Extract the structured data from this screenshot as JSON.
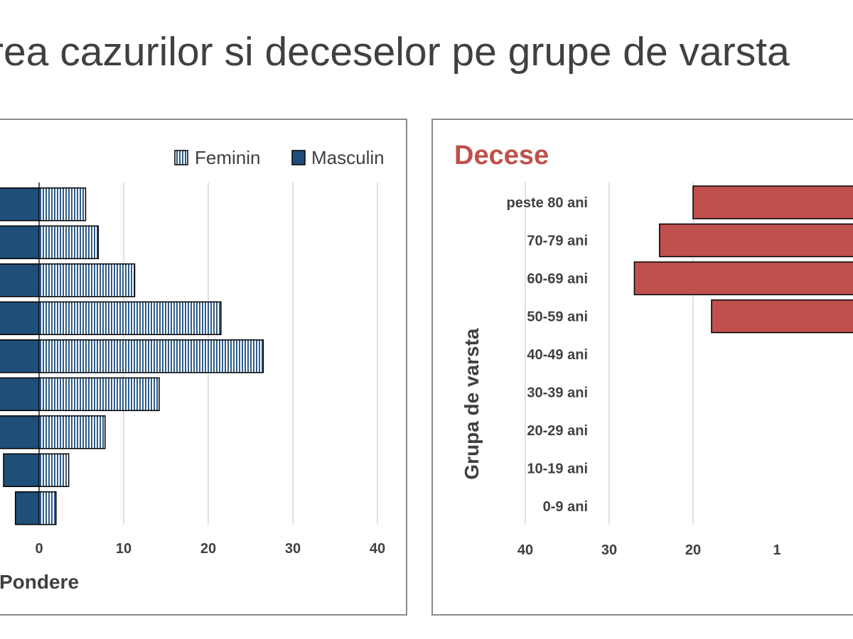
{
  "page": {
    "title": "rea cazurilor si deceselor pe grupe de varsta"
  },
  "colors": {
    "masculin": "#1f4e79",
    "feminin_stripe": "#2e5c8a",
    "deaths": "#c0504d",
    "deaths_title": "#c0504d",
    "text": "#404040"
  },
  "chart_data": [
    {
      "type": "bar",
      "orientation": "horizontal",
      "title": "",
      "xlabel": "Pondere",
      "ylabel": "",
      "categories": [
        "peste 80 ani",
        "70-79 ani",
        "60-69 ani",
        "50-59 ani",
        "40-49 ani",
        "30-39 ani",
        "20-29 ani",
        "10-19 ani",
        "0-9 ani"
      ],
      "series": [
        {
          "name": "Feminin",
          "values": [
            5.5,
            7,
            11.3,
            21.5,
            26.5,
            14.2,
            7.8,
            3.5,
            2
          ]
        },
        {
          "name": "Masculin",
          "values": [
            null,
            null,
            null,
            null,
            null,
            null,
            null,
            4.2,
            2.8
          ]
        }
      ],
      "x_ticks": [
        "0",
        "10",
        "20",
        "30",
        "40"
      ],
      "xlim_visible": [
        0,
        40
      ],
      "legend": {
        "position": "top-right",
        "entries": [
          "Feminin",
          "Masculin"
        ]
      },
      "grid": true
    },
    {
      "type": "bar",
      "orientation": "horizontal",
      "title": "Decese",
      "ylabel": "Grupa de varsta",
      "xlabel": "",
      "categories": [
        "peste 80 ani",
        "70-79 ani",
        "60-69 ani",
        "50-59 ani",
        "40-49 ani",
        "30-39 ani",
        "20-29 ani",
        "10-19 ani",
        "0-9 ani"
      ],
      "series": [
        {
          "values": [
            20,
            24,
            27,
            17.8,
            0,
            0,
            0,
            0,
            0
          ]
        }
      ],
      "x_ticks": [
        "40",
        "30",
        "20",
        "1"
      ],
      "x_reversed": true,
      "grid": true
    }
  ]
}
